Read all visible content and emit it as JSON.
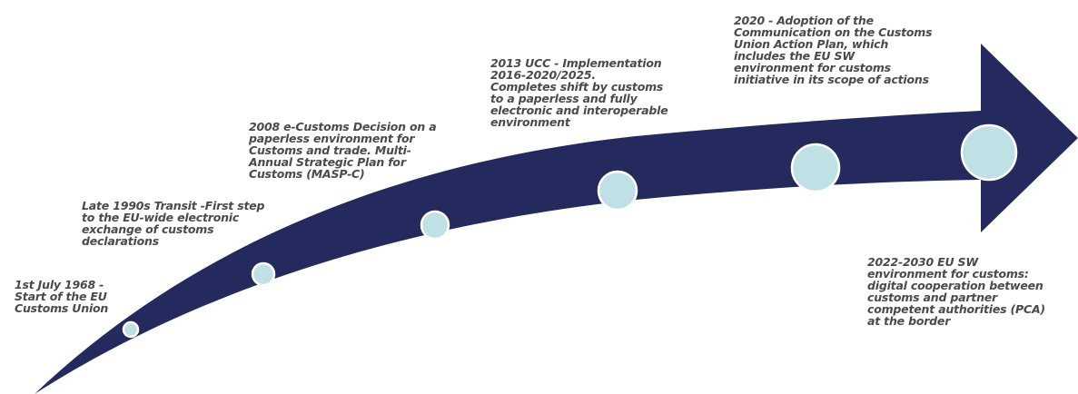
{
  "colors": {
    "arrow": "#252a5e",
    "milestone_fill": "#bfe0e4",
    "milestone_stroke": "#ffffff",
    "text": "#4a4a4a"
  },
  "milestones": [
    {
      "id": "m1968",
      "text": "1st July 1968 -\nStart of the EU\nCustoms Union"
    },
    {
      "id": "m1990s",
      "text": "Late 1990s Transit -First step\nto the EU-wide electronic\nexchange of customs\ndeclarations"
    },
    {
      "id": "m2008",
      "text": "2008 e-Customs Decision on a\npaperless environment for\nCustoms and trade. Multi-\nAnnual Strategic Plan for\nCustoms (MASP-C)"
    },
    {
      "id": "m2013",
      "text": "2013 UCC - Implementation\n2016-2020/2025.\nCompletes shift by customs\nto a paperless and fully\nelectronic and interoperable\nenvironment"
    },
    {
      "id": "m2020",
      "text": "2020 - Adoption of the\nCommunication on the Customs\nUnion Action Plan, which\nincludes the EU SW\nenvironment for customs\ninitiative in its scope of actions"
    },
    {
      "id": "m2022",
      "text": "2022-2030 EU SW\nenvironment for customs:\ndigital cooperation between\ncustoms and partner\ncompetent authorities (PCA)\nat the border"
    }
  ]
}
